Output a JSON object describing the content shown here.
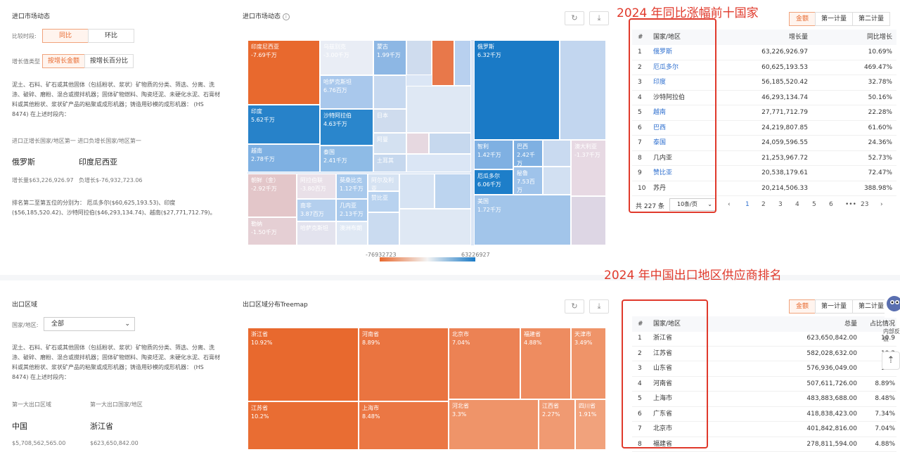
{
  "colors": {
    "accent": "#e8692e",
    "link": "#2e6fcf",
    "annotation": "#e0392b",
    "neg": "#e8692e",
    "pos": "#1a7ac6"
  },
  "import_panel": {
    "title": "进口市场动态",
    "compare_label": "比较时段:",
    "compare_opts": [
      "同比",
      "环比"
    ],
    "growth_label": "增长值类型",
    "growth_opts": [
      "按增长金额",
      "按增长百分比"
    ],
    "desc": "泥土、石料、矿石或其他固体（包括粉状、浆状）矿物质的分类、筛选、分离、洗涤、破碎、磨粉、混合或搅拌机器；固体矿物燃料、陶瓷坯泥、未硬化水泥、石膏材料或其他粉状、浆状矿产品的粘聚或成形机器；铸造用砂模的成形机器： (HS 8474) 在上述时段内：",
    "top_labels": "进口正增长国家/地区第一  进口负增长国家/地区第一",
    "top_pos": "俄罗斯",
    "top_neg": "印度尼西亚",
    "top_pos_val": "增长量$63,226,926.97",
    "top_neg_val": "负增长$-76,932,723.06",
    "rank_text": "排名第二至第五位的分别为： 厄瓜多尔($60,625,193.53)、印度($56,185,520.42)、沙特阿拉伯($46,293,134.74)、越南($27,771,712.79)。"
  },
  "import_treemap": {
    "title": "进口市场动态",
    "info_icon": "info-icon",
    "legend_min": "-76932723",
    "legend_max": "63226927",
    "tiles": [
      {
        "name": "印度尼西亚",
        "val": "-7.69千万"
      },
      {
        "name": "乌兹别克",
        "val": "-3.00千万"
      },
      {
        "name": "蒙古",
        "val": "1.99千万"
      },
      {
        "name": "哈萨克斯坦",
        "val": "6.76百万"
      },
      {
        "name": "印度",
        "val": "5.62千万"
      },
      {
        "name": "沙特阿拉伯",
        "val": "4.63千万"
      },
      {
        "name": "日本",
        "val": ""
      },
      {
        "name": "阿曼",
        "val": ""
      },
      {
        "name": "越南",
        "val": "2.78千万"
      },
      {
        "name": "泰国",
        "val": "2.41千万"
      },
      {
        "name": "土耳其",
        "val": ""
      },
      {
        "name": "俄罗斯",
        "val": "6.32千万"
      },
      {
        "name": "智利",
        "val": "1.42千万"
      },
      {
        "name": "巴西",
        "val": "2.42千万"
      },
      {
        "name": "澳大利亚",
        "val": "-1.37千万"
      },
      {
        "name": "厄瓜多尔",
        "val": "6.06千万"
      },
      {
        "name": "秘鲁",
        "val": "7.53百万"
      },
      {
        "name": "美国",
        "val": "1.72千万"
      },
      {
        "name": "朝鲜（金）",
        "val": "-2.92千万"
      },
      {
        "name": "阿拉伯联",
        "val": "-3.80百万"
      },
      {
        "name": "莫桑比克",
        "val": "1.12千万"
      },
      {
        "name": "阿尔及利亚",
        "val": ""
      },
      {
        "name": "南非",
        "val": "3.87百万"
      },
      {
        "name": "几内亚",
        "val": "2.13千万"
      },
      {
        "name": "赞比亚",
        "val": ""
      },
      {
        "name": "勒纳",
        "val": "-1.50千万"
      },
      {
        "name": "哈萨克斯坦",
        "val": ""
      },
      {
        "name": "澳洲布朗",
        "val": ""
      }
    ]
  },
  "import_table": {
    "annotation": "2024 年同比涨幅前十国家",
    "tabs": [
      "金额",
      "第一计量",
      "第二计量"
    ],
    "headers": [
      "#",
      "国家/地区",
      "增长量",
      "同比增长"
    ],
    "rows": [
      {
        "n": "1",
        "country": "俄罗斯",
        "amount": "63,226,926.97",
        "pct": "10.69%",
        "link": true
      },
      {
        "n": "2",
        "country": "厄瓜多尔",
        "amount": "60,625,193.53",
        "pct": "469.47%",
        "link": true
      },
      {
        "n": "3",
        "country": "印度",
        "amount": "56,185,520.42",
        "pct": "32.78%",
        "link": true
      },
      {
        "n": "4",
        "country": "沙特阿拉伯",
        "amount": "46,293,134.74",
        "pct": "50.16%",
        "link": false
      },
      {
        "n": "5",
        "country": "越南",
        "amount": "27,771,712.79",
        "pct": "22.28%",
        "link": true
      },
      {
        "n": "6",
        "country": "巴西",
        "amount": "24,219,807.85",
        "pct": "61.60%",
        "link": true
      },
      {
        "n": "7",
        "country": "泰国",
        "amount": "24,059,596.55",
        "pct": "24.36%",
        "link": true
      },
      {
        "n": "8",
        "country": "几内亚",
        "amount": "21,253,967.72",
        "pct": "52.73%",
        "link": false
      },
      {
        "n": "9",
        "country": "赞比亚",
        "amount": "20,538,179.61",
        "pct": "72.47%",
        "link": true
      },
      {
        "n": "10",
        "country": "苏丹",
        "amount": "20,214,506.33",
        "pct": "388.98%",
        "link": false
      }
    ],
    "total": "共 227 条",
    "page_size": "10条/页",
    "pages": [
      "1",
      "2",
      "3",
      "4",
      "5",
      "6",
      "•••",
      "23"
    ],
    "current_page": "1"
  },
  "export_panel": {
    "title": "出口区域",
    "region_label": "国家/地区:",
    "region_value": "全部",
    "desc": "泥土、石料、矿石或其他固体（包括粉状、浆状）矿物质的分类、筛选、分离、洗涤、破碎、磨粉、混合或搅拌机器；固体矿物燃料、陶瓷坯泥、未硬化水泥、石膏材料或其他粉状、浆状矿产品的粘聚或成形机器；铸造用砂模的成形机器： (HS 8474) 在上述时段内：",
    "first_region_label": "第一大出口区域",
    "first_country_label": "第一大出口国家/地区",
    "first_region": "中国",
    "first_country": "浙江省",
    "first_region_val": "$5,708,562,565.00",
    "first_country_val": "$623,650,842.00"
  },
  "export_treemap": {
    "title": "出口区域分布Treemap",
    "tiles": [
      {
        "name": "浙江省",
        "val": "10.92%"
      },
      {
        "name": "河南省",
        "val": "8.89%"
      },
      {
        "name": "北京市",
        "val": "7.04%"
      },
      {
        "name": "福建省",
        "val": "4.88%"
      },
      {
        "name": "天津市",
        "val": "3.49%"
      },
      {
        "name": "江苏省",
        "val": "10.2%"
      },
      {
        "name": "上海市",
        "val": "8.48%"
      },
      {
        "name": "河北省",
        "val": "3.3%"
      },
      {
        "name": "江西省",
        "val": "2.27%"
      },
      {
        "name": "四川省",
        "val": "1.91%"
      }
    ]
  },
  "export_table": {
    "annotation": "2024 年中国出口地区供应商排名",
    "tabs": [
      "金额",
      "第一计量",
      "第二计量"
    ],
    "headers": [
      "#",
      "国家/地区",
      "总量",
      "占比情况"
    ],
    "rows": [
      {
        "n": "1",
        "country": "浙江省",
        "amount": "623,650,842.00",
        "pct": "10.9"
      },
      {
        "n": "2",
        "country": "江苏省",
        "amount": "582,028,632.00",
        "pct": "10.2"
      },
      {
        "n": "3",
        "country": "山东省",
        "amount": "576,936,049.00",
        "pct": "10.1"
      },
      {
        "n": "4",
        "country": "河南省",
        "amount": "507,611,726.00",
        "pct": "8.89%"
      },
      {
        "n": "5",
        "country": "上海市",
        "amount": "483,883,688.00",
        "pct": "8.48%"
      },
      {
        "n": "6",
        "country": "广东省",
        "amount": "418,838,423.00",
        "pct": "7.34%"
      },
      {
        "n": "7",
        "country": "北京市",
        "amount": "401,842,816.00",
        "pct": "7.04%"
      },
      {
        "n": "8",
        "country": "福建省",
        "amount": "278,811,594.00",
        "pct": "4.88%"
      }
    ]
  },
  "side_widget": {
    "feedback": "内部反馈",
    "icons": [
      "robot-icon",
      "arrow-up-icon"
    ]
  }
}
